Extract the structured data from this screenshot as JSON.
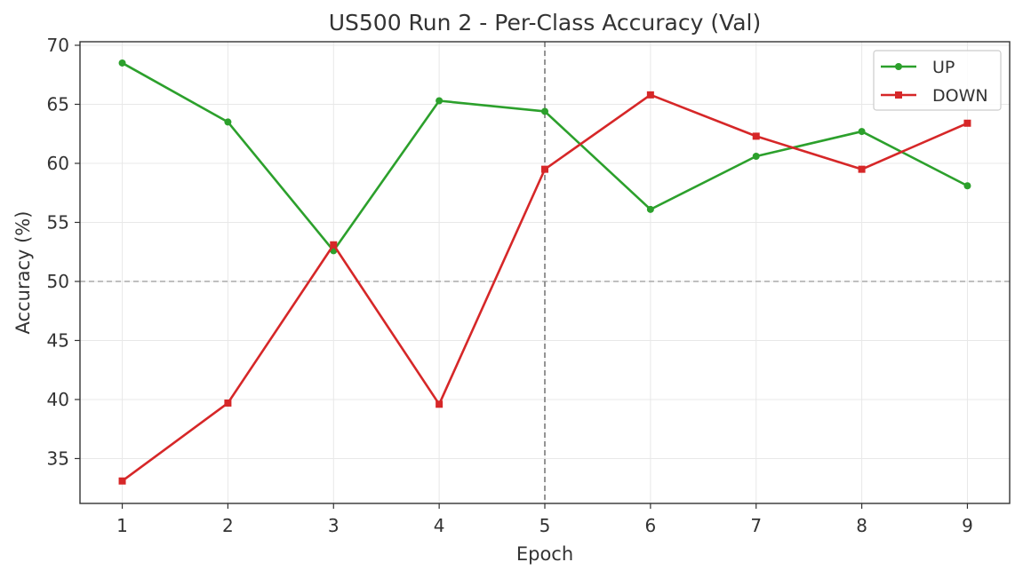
{
  "chart_data": {
    "type": "line",
    "title": "US500 Run 2 - Per-Class Accuracy (Val)",
    "xlabel": "Epoch",
    "ylabel": "Accuracy (%)",
    "x": [
      1,
      2,
      3,
      4,
      5,
      6,
      7,
      8,
      9
    ],
    "xlim": [
      0.6,
      9.4
    ],
    "ylim": [
      31.2,
      70.3
    ],
    "yticks": [
      35,
      40,
      45,
      50,
      55,
      60,
      65,
      70
    ],
    "grid": true,
    "legend_position": "top-right",
    "reference_lines": [
      {
        "orientation": "horizontal",
        "value": 50,
        "color": "#b0b0b0",
        "style": "dashed"
      },
      {
        "orientation": "vertical",
        "value": 5,
        "color": "#7a7a7a",
        "style": "dashed"
      }
    ],
    "series": [
      {
        "name": "UP",
        "color": "#2ca02c",
        "marker": "circle",
        "values": [
          68.5,
          63.5,
          52.6,
          65.3,
          64.4,
          56.1,
          60.6,
          62.7,
          58.1
        ]
      },
      {
        "name": "DOWN",
        "color": "#d62728",
        "marker": "square",
        "values": [
          33.1,
          39.7,
          53.1,
          39.6,
          59.5,
          65.8,
          62.3,
          59.5,
          63.4
        ]
      }
    ]
  }
}
